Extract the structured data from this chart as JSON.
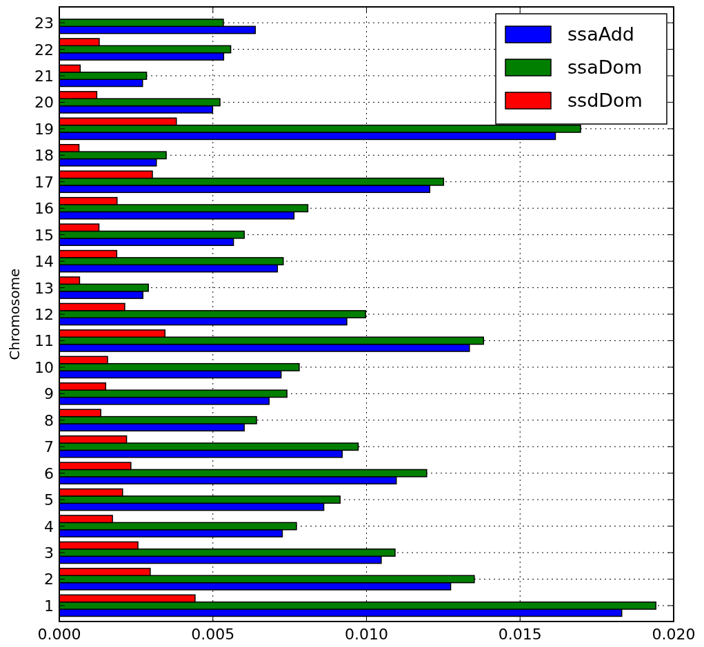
{
  "chart_data": {
    "type": "bar",
    "orientation": "horizontal",
    "ylabel": "Chromosome",
    "categories": [
      "23",
      "22",
      "21",
      "20",
      "19",
      "18",
      "17",
      "16",
      "15",
      "14",
      "13",
      "12",
      "11",
      "10",
      "9",
      "8",
      "7",
      "6",
      "5",
      "4",
      "3",
      "2",
      "1"
    ],
    "series": [
      {
        "name": "ssaAdd",
        "color": "#0000ff",
        "values": [
          0.00638,
          0.00535,
          0.00271,
          0.00499,
          0.01615,
          0.00316,
          0.01206,
          0.00764,
          0.00567,
          0.0071,
          0.00272,
          0.00936,
          0.01335,
          0.00722,
          0.00683,
          0.00602,
          0.00921,
          0.01097,
          0.00861,
          0.00726,
          0.01048,
          0.01274,
          0.01831
        ]
      },
      {
        "name": "ssaDom",
        "color": "#007f00",
        "values": [
          0.00534,
          0.00558,
          0.00284,
          0.00523,
          0.01697,
          0.00348,
          0.01251,
          0.00809,
          0.00602,
          0.00729,
          0.0029,
          0.00997,
          0.01381,
          0.00781,
          0.00741,
          0.00642,
          0.00973,
          0.01196,
          0.00914,
          0.00772,
          0.01093,
          0.01351,
          0.01942
        ]
      },
      {
        "name": "ssdDom",
        "color": "#ff0000",
        "values": [
          null,
          0.0013,
          0.00068,
          0.00122,
          0.00381,
          0.00064,
          0.00303,
          0.00188,
          0.00129,
          0.00187,
          0.00066,
          0.00213,
          0.00344,
          0.00157,
          0.00151,
          0.00135,
          0.00219,
          0.00233,
          0.00206,
          0.00173,
          0.00256,
          0.00296,
          0.00442
        ]
      }
    ],
    "xlim": [
      0,
      0.02
    ],
    "xticks": [
      {
        "value": 0,
        "label": "0.000"
      },
      {
        "value": 0.005,
        "label": "0.005"
      },
      {
        "value": 0.01,
        "label": "0.010"
      },
      {
        "value": 0.015,
        "label": "0.015"
      },
      {
        "value": 0.02,
        "label": "0.020"
      }
    ],
    "grid": true,
    "legend": "top right"
  }
}
